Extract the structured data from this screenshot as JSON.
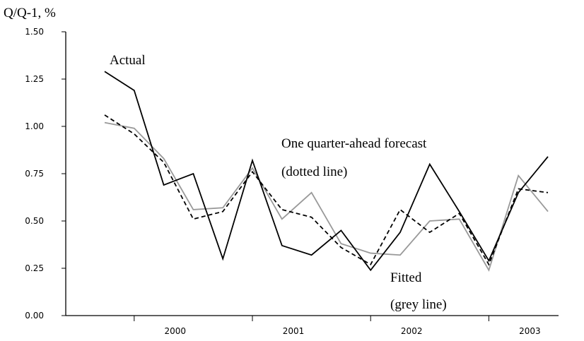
{
  "chart_data": {
    "type": "line",
    "y_label": "Q/Q-1, %",
    "categories": [
      null,
      null,
      null,
      null,
      null,
      null,
      null,
      null,
      null,
      null,
      null,
      null,
      null,
      null,
      null,
      null
    ],
    "xtick_labels": [
      "2000",
      "2001",
      "2002",
      "2003"
    ],
    "ylim": [
      0,
      1.5
    ],
    "yticks": [
      {
        "value": 0,
        "label": "0.00"
      },
      {
        "value": 0.25,
        "label": "0.25"
      },
      {
        "value": 0.5,
        "label": "0.50"
      },
      {
        "value": 0.75,
        "label": "0.75"
      },
      {
        "value": 1,
        "label": "1.00"
      },
      {
        "value": 1.25,
        "label": "1.25"
      },
      {
        "value": 1.5,
        "label": "1.50"
      }
    ],
    "series": [
      {
        "name": "Actual",
        "color": "#000000",
        "dashed": false,
        "values": [
          1.29,
          1.19,
          0.69,
          0.75,
          0.3,
          0.82,
          0.37,
          0.32,
          0.45,
          0.24,
          0.44,
          0.8,
          0.55,
          0.29,
          0.65,
          0.84
        ]
      },
      {
        "name": "One quarter-ahead forecast",
        "note": "(dotted line)",
        "color": "#000000",
        "dashed": true,
        "values": [
          1.06,
          0.96,
          0.81,
          0.51,
          0.55,
          0.76,
          0.56,
          0.52,
          0.36,
          0.27,
          0.56,
          0.44,
          0.54,
          0.27,
          0.67,
          0.65
        ]
      },
      {
        "name": "Fitted",
        "note": "(grey line)",
        "color": "#999999",
        "dashed": false,
        "values": [
          1.02,
          0.99,
          0.83,
          0.56,
          0.57,
          0.78,
          0.51,
          0.65,
          0.38,
          0.33,
          0.32,
          0.5,
          0.51,
          0.24,
          0.74,
          0.55
        ]
      }
    ]
  }
}
